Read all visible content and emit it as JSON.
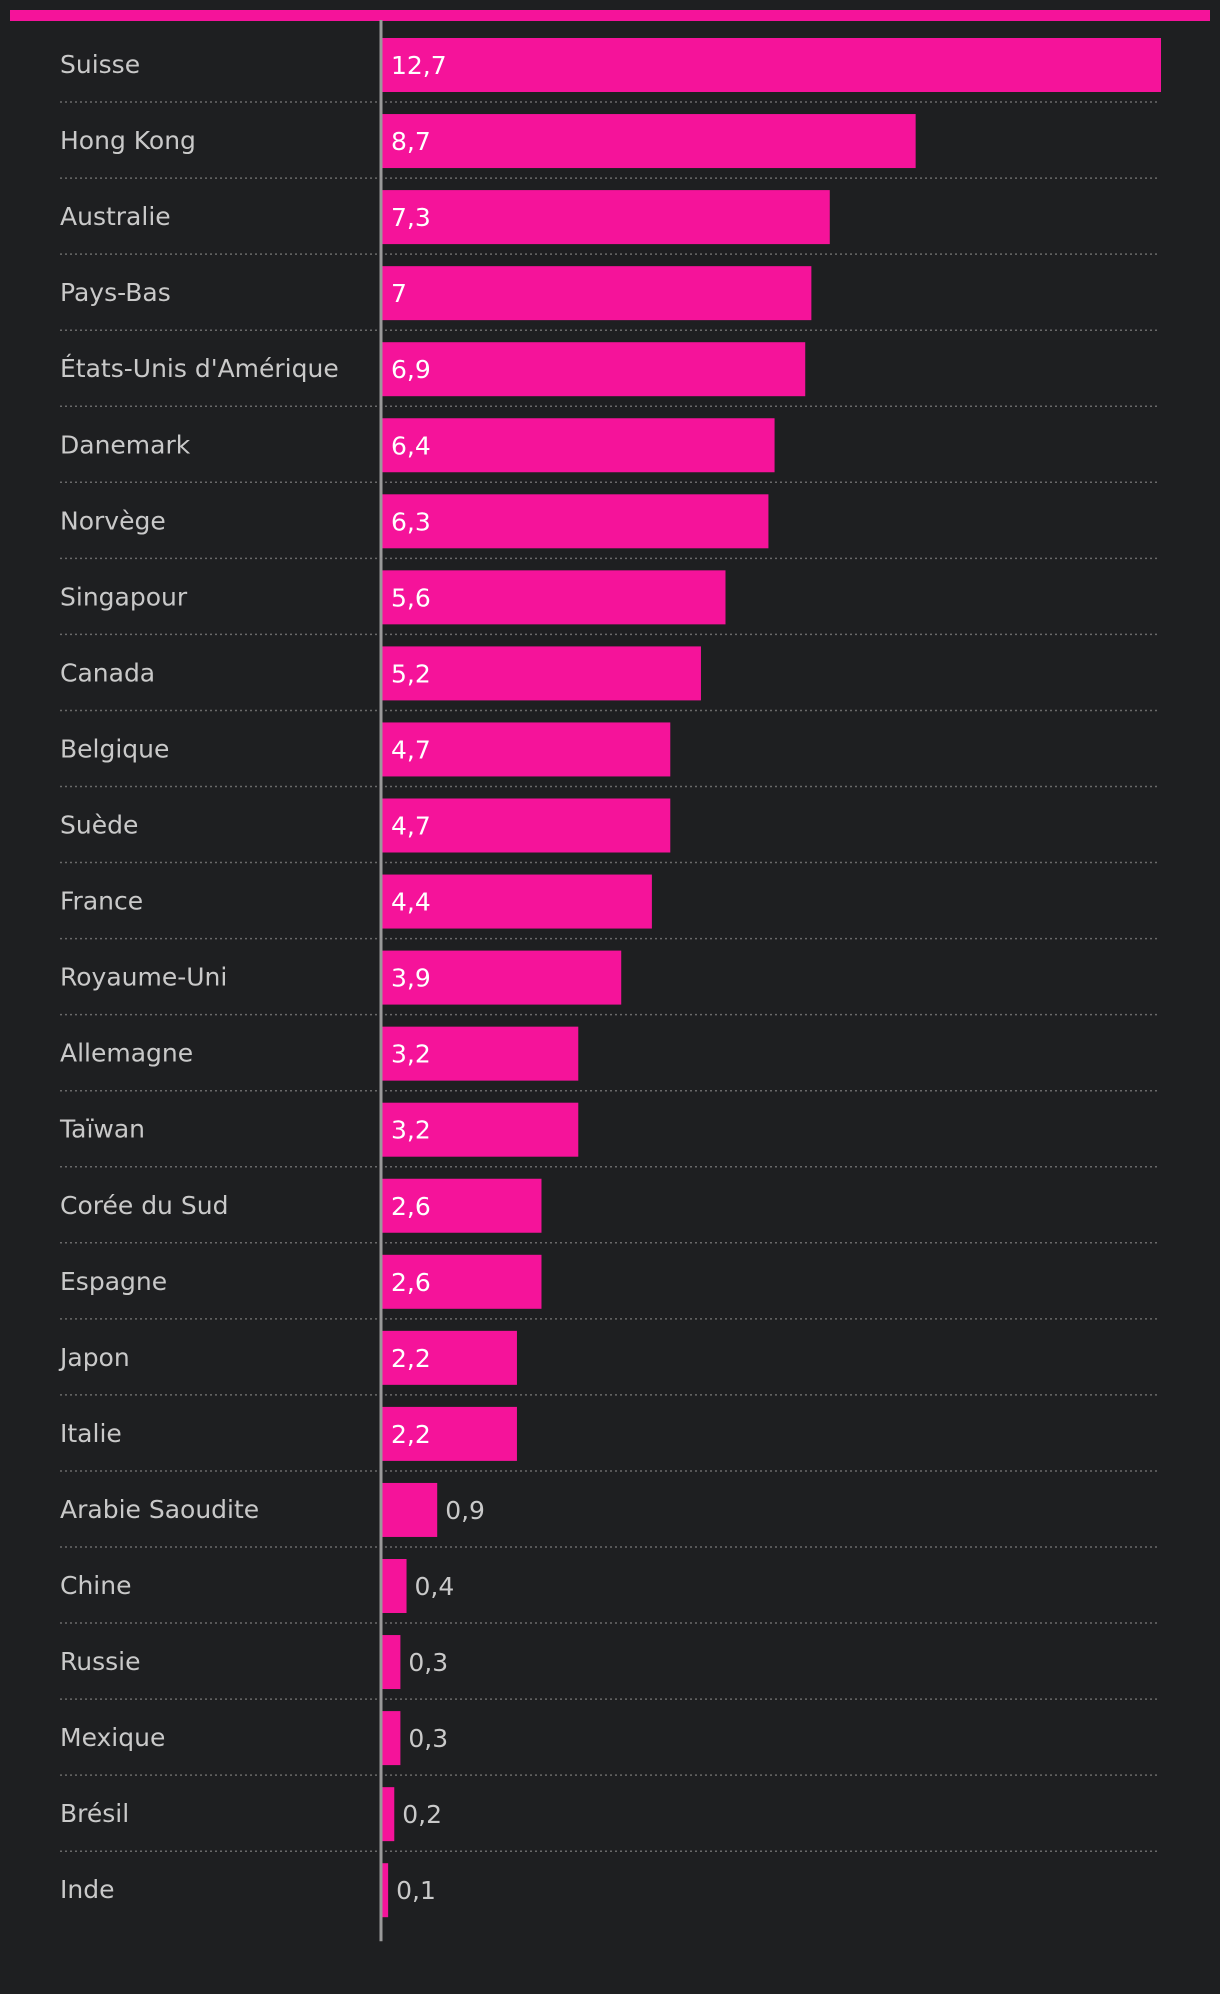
{
  "colors": {
    "background": "#1e1f21",
    "accent": "#f5139a",
    "label_text": "#c9c9c9",
    "value_inside_text": "#ffffff",
    "value_outside_text": "#c9c9c9",
    "axis_line": "#9a9a9a",
    "grid_dotted": "#6a6a6a"
  },
  "chart_data": {
    "type": "bar",
    "orientation": "horizontal",
    "title": "",
    "xlabel": "",
    "ylabel": "",
    "xlim": [
      0,
      12.7
    ],
    "grid": false,
    "legend": "none",
    "categories": [
      "Suisse",
      "Hong Kong",
      "Australie",
      "Pays-Bas",
      "États-Unis d'Amérique",
      "Danemark",
      "Norvège",
      "Singapour",
      "Canada",
      "Belgique",
      "Suède",
      "France",
      "Royaume-Uni",
      "Allemagne",
      "Taïwan",
      "Corée du Sud",
      "Espagne",
      "Japon",
      "Italie",
      "Arabie Saoudite",
      "Chine",
      "Russie",
      "Mexique",
      "Brésil",
      "Inde"
    ],
    "values": [
      12.7,
      8.7,
      7.3,
      7,
      6.9,
      6.4,
      6.3,
      5.6,
      5.2,
      4.7,
      4.7,
      4.4,
      3.9,
      3.2,
      3.2,
      2.6,
      2.6,
      2.2,
      2.2,
      0.9,
      0.4,
      0.3,
      0.3,
      0.2,
      0.1
    ],
    "value_labels": [
      "12,7",
      "8,7",
      "7,3",
      "7",
      "6,9",
      "6,4",
      "6,3",
      "5,6",
      "5,2",
      "4,7",
      "4,7",
      "4,4",
      "3,9",
      "3,2",
      "3,2",
      "2,6",
      "2,6",
      "2,2",
      "2,2",
      "0,9",
      "0,4",
      "0,3",
      "0,3",
      "0,2",
      "0,1"
    ]
  }
}
